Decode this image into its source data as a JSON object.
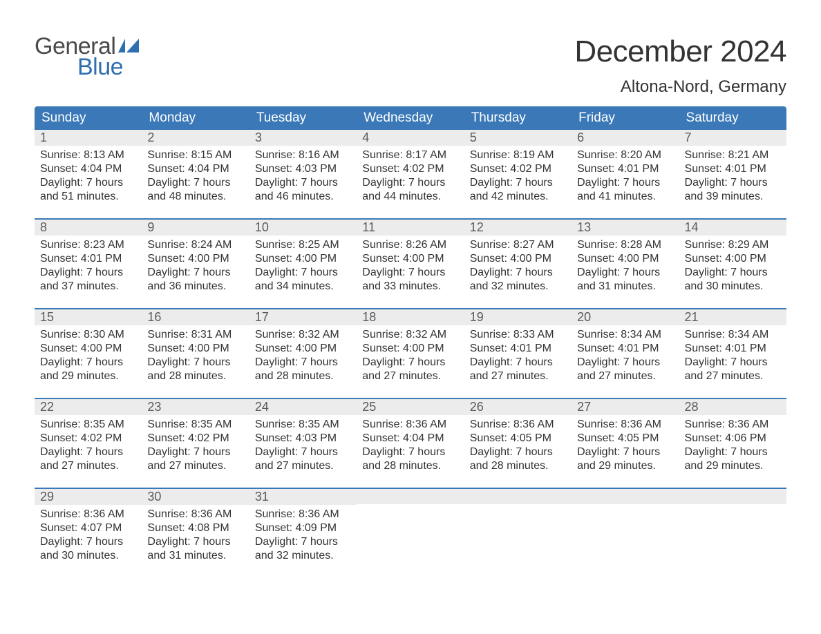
{
  "brand": {
    "word1": "General",
    "word2": "Blue",
    "word1_color": "#4a4a4a",
    "word2_color": "#2f6fb0",
    "flag_color": "#2f6fb0"
  },
  "title": "December 2024",
  "subtitle": "Altona-Nord, Germany",
  "colors": {
    "header_bg": "#3a78b8",
    "header_text": "#ffffff",
    "daynum_bg": "#ececec",
    "daynum_text": "#5a5a5a",
    "body_text": "#333333",
    "week_border": "#3a78b8",
    "page_bg": "#ffffff"
  },
  "day_headers": [
    "Sunday",
    "Monday",
    "Tuesday",
    "Wednesday",
    "Thursday",
    "Friday",
    "Saturday"
  ],
  "weeks": [
    [
      {
        "n": "1",
        "sunrise": "Sunrise: 8:13 AM",
        "sunset": "Sunset: 4:04 PM",
        "d1": "Daylight: 7 hours",
        "d2": "and 51 minutes."
      },
      {
        "n": "2",
        "sunrise": "Sunrise: 8:15 AM",
        "sunset": "Sunset: 4:04 PM",
        "d1": "Daylight: 7 hours",
        "d2": "and 48 minutes."
      },
      {
        "n": "3",
        "sunrise": "Sunrise: 8:16 AM",
        "sunset": "Sunset: 4:03 PM",
        "d1": "Daylight: 7 hours",
        "d2": "and 46 minutes."
      },
      {
        "n": "4",
        "sunrise": "Sunrise: 8:17 AM",
        "sunset": "Sunset: 4:02 PM",
        "d1": "Daylight: 7 hours",
        "d2": "and 44 minutes."
      },
      {
        "n": "5",
        "sunrise": "Sunrise: 8:19 AM",
        "sunset": "Sunset: 4:02 PM",
        "d1": "Daylight: 7 hours",
        "d2": "and 42 minutes."
      },
      {
        "n": "6",
        "sunrise": "Sunrise: 8:20 AM",
        "sunset": "Sunset: 4:01 PM",
        "d1": "Daylight: 7 hours",
        "d2": "and 41 minutes."
      },
      {
        "n": "7",
        "sunrise": "Sunrise: 8:21 AM",
        "sunset": "Sunset: 4:01 PM",
        "d1": "Daylight: 7 hours",
        "d2": "and 39 minutes."
      }
    ],
    [
      {
        "n": "8",
        "sunrise": "Sunrise: 8:23 AM",
        "sunset": "Sunset: 4:01 PM",
        "d1": "Daylight: 7 hours",
        "d2": "and 37 minutes."
      },
      {
        "n": "9",
        "sunrise": "Sunrise: 8:24 AM",
        "sunset": "Sunset: 4:00 PM",
        "d1": "Daylight: 7 hours",
        "d2": "and 36 minutes."
      },
      {
        "n": "10",
        "sunrise": "Sunrise: 8:25 AM",
        "sunset": "Sunset: 4:00 PM",
        "d1": "Daylight: 7 hours",
        "d2": "and 34 minutes."
      },
      {
        "n": "11",
        "sunrise": "Sunrise: 8:26 AM",
        "sunset": "Sunset: 4:00 PM",
        "d1": "Daylight: 7 hours",
        "d2": "and 33 minutes."
      },
      {
        "n": "12",
        "sunrise": "Sunrise: 8:27 AM",
        "sunset": "Sunset: 4:00 PM",
        "d1": "Daylight: 7 hours",
        "d2": "and 32 minutes."
      },
      {
        "n": "13",
        "sunrise": "Sunrise: 8:28 AM",
        "sunset": "Sunset: 4:00 PM",
        "d1": "Daylight: 7 hours",
        "d2": "and 31 minutes."
      },
      {
        "n": "14",
        "sunrise": "Sunrise: 8:29 AM",
        "sunset": "Sunset: 4:00 PM",
        "d1": "Daylight: 7 hours",
        "d2": "and 30 minutes."
      }
    ],
    [
      {
        "n": "15",
        "sunrise": "Sunrise: 8:30 AM",
        "sunset": "Sunset: 4:00 PM",
        "d1": "Daylight: 7 hours",
        "d2": "and 29 minutes."
      },
      {
        "n": "16",
        "sunrise": "Sunrise: 8:31 AM",
        "sunset": "Sunset: 4:00 PM",
        "d1": "Daylight: 7 hours",
        "d2": "and 28 minutes."
      },
      {
        "n": "17",
        "sunrise": "Sunrise: 8:32 AM",
        "sunset": "Sunset: 4:00 PM",
        "d1": "Daylight: 7 hours",
        "d2": "and 28 minutes."
      },
      {
        "n": "18",
        "sunrise": "Sunrise: 8:32 AM",
        "sunset": "Sunset: 4:00 PM",
        "d1": "Daylight: 7 hours",
        "d2": "and 27 minutes."
      },
      {
        "n": "19",
        "sunrise": "Sunrise: 8:33 AM",
        "sunset": "Sunset: 4:01 PM",
        "d1": "Daylight: 7 hours",
        "d2": "and 27 minutes."
      },
      {
        "n": "20",
        "sunrise": "Sunrise: 8:34 AM",
        "sunset": "Sunset: 4:01 PM",
        "d1": "Daylight: 7 hours",
        "d2": "and 27 minutes."
      },
      {
        "n": "21",
        "sunrise": "Sunrise: 8:34 AM",
        "sunset": "Sunset: 4:01 PM",
        "d1": "Daylight: 7 hours",
        "d2": "and 27 minutes."
      }
    ],
    [
      {
        "n": "22",
        "sunrise": "Sunrise: 8:35 AM",
        "sunset": "Sunset: 4:02 PM",
        "d1": "Daylight: 7 hours",
        "d2": "and 27 minutes."
      },
      {
        "n": "23",
        "sunrise": "Sunrise: 8:35 AM",
        "sunset": "Sunset: 4:02 PM",
        "d1": "Daylight: 7 hours",
        "d2": "and 27 minutes."
      },
      {
        "n": "24",
        "sunrise": "Sunrise: 8:35 AM",
        "sunset": "Sunset: 4:03 PM",
        "d1": "Daylight: 7 hours",
        "d2": "and 27 minutes."
      },
      {
        "n": "25",
        "sunrise": "Sunrise: 8:36 AM",
        "sunset": "Sunset: 4:04 PM",
        "d1": "Daylight: 7 hours",
        "d2": "and 28 minutes."
      },
      {
        "n": "26",
        "sunrise": "Sunrise: 8:36 AM",
        "sunset": "Sunset: 4:05 PM",
        "d1": "Daylight: 7 hours",
        "d2": "and 28 minutes."
      },
      {
        "n": "27",
        "sunrise": "Sunrise: 8:36 AM",
        "sunset": "Sunset: 4:05 PM",
        "d1": "Daylight: 7 hours",
        "d2": "and 29 minutes."
      },
      {
        "n": "28",
        "sunrise": "Sunrise: 8:36 AM",
        "sunset": "Sunset: 4:06 PM",
        "d1": "Daylight: 7 hours",
        "d2": "and 29 minutes."
      }
    ],
    [
      {
        "n": "29",
        "sunrise": "Sunrise: 8:36 AM",
        "sunset": "Sunset: 4:07 PM",
        "d1": "Daylight: 7 hours",
        "d2": "and 30 minutes."
      },
      {
        "n": "30",
        "sunrise": "Sunrise: 8:36 AM",
        "sunset": "Sunset: 4:08 PM",
        "d1": "Daylight: 7 hours",
        "d2": "and 31 minutes."
      },
      {
        "n": "31",
        "sunrise": "Sunrise: 8:36 AM",
        "sunset": "Sunset: 4:09 PM",
        "d1": "Daylight: 7 hours",
        "d2": "and 32 minutes."
      },
      {
        "empty": true
      },
      {
        "empty": true
      },
      {
        "empty": true
      },
      {
        "empty": true
      }
    ]
  ]
}
